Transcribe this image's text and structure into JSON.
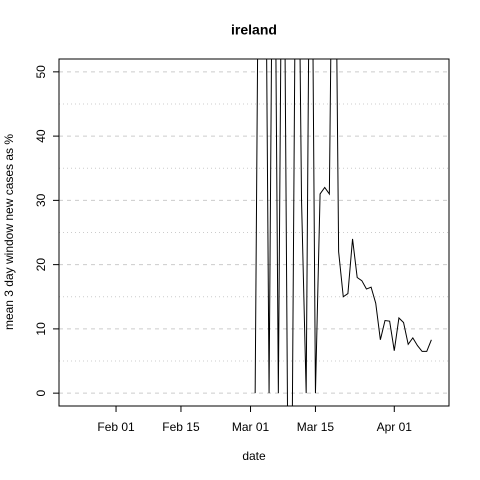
{
  "chart_data": {
    "type": "line",
    "title": "ireland",
    "xlabel": "date",
    "ylabel": "mean  3  day window new cases as %",
    "x": [
      62,
      63,
      64,
      65,
      66,
      67,
      68,
      69,
      70,
      71,
      72,
      73,
      74,
      75,
      76,
      77,
      78,
      79,
      80,
      81,
      82,
      83,
      84,
      85,
      86,
      87,
      88,
      89,
      90,
      91,
      92,
      93,
      94,
      95,
      96,
      97,
      98,
      99,
      100
    ],
    "series": [
      {
        "name": "ireland",
        "color": "#000000",
        "values": [
          0,
          100,
          100,
          0,
          100,
          0,
          100,
          -5,
          -5,
          100,
          30,
          0,
          100,
          0,
          31,
          32,
          31,
          100,
          22,
          15,
          15.5,
          24,
          18,
          17.5,
          16.2,
          16.5,
          14,
          8.3,
          11.3,
          11.2,
          6.6,
          11.7,
          11,
          7.6,
          8.6,
          7.4,
          6.5,
          6.5,
          8.3
        ]
      }
    ],
    "xlim": [
      19.7,
      103.8
    ],
    "xticks": [
      {
        "value": 32,
        "label": "Feb 01"
      },
      {
        "value": 46,
        "label": "Feb 15"
      },
      {
        "value": 61,
        "label": "Mar 01"
      },
      {
        "value": 75,
        "label": "Mar 15"
      },
      {
        "value": 92,
        "label": "Apr 01"
      }
    ],
    "ylim": [
      -2,
      52
    ],
    "yticks": [
      0,
      10,
      20,
      30,
      40,
      50
    ],
    "ygrid_minor": [
      5,
      15,
      25,
      35,
      45
    ],
    "grid": true
  }
}
